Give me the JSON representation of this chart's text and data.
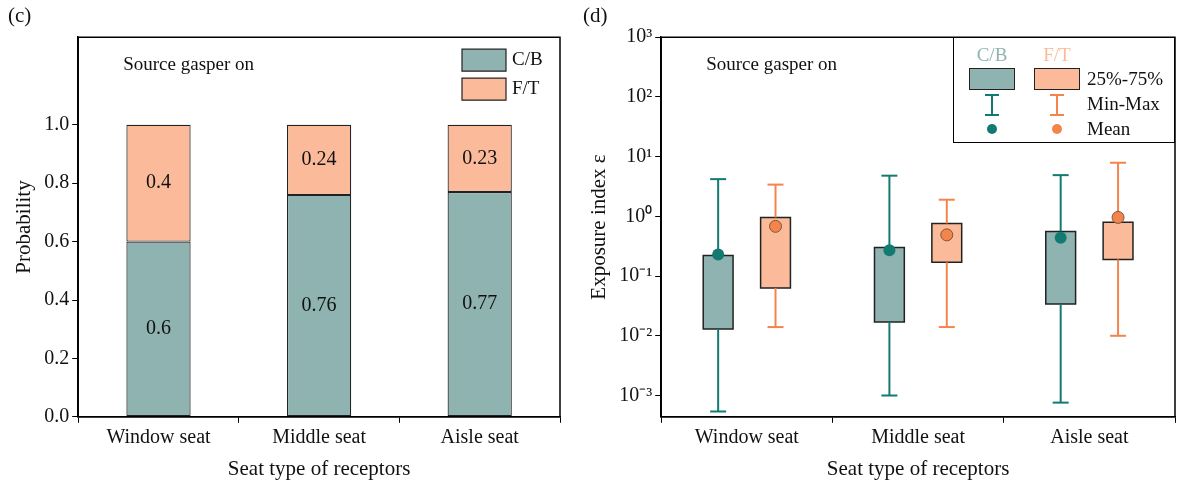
{
  "chart_data": [
    {
      "type": "bar",
      "title": "(c)",
      "stacked": true,
      "categories": [
        "Window seat",
        "Middle seat",
        "Aisle seat"
      ],
      "series": [
        {
          "name": "C/B",
          "color": "#8fb3b1",
          "values": [
            0.6,
            0.76,
            0.77
          ]
        },
        {
          "name": "F/T",
          "color": "#fbbb9a",
          "values": [
            0.4,
            0.24,
            0.23
          ]
        }
      ],
      "xlabel": "Seat type of receptors",
      "ylabel": "Probability",
      "ylim": [
        0,
        1.3
      ],
      "yticks": [
        {
          "value": 0,
          "label": "0.0"
        },
        0.2,
        0.4,
        0.6,
        0.8,
        {
          "value": 1,
          "label": "1.0"
        }
      ],
      "data_labels": true,
      "legend": "top right",
      "annotations": [
        "Source gasper on"
      ]
    },
    {
      "type": "box",
      "title": "(d)",
      "categories": [
        "Window seat",
        "Middle seat",
        "Aisle seat"
      ],
      "series": [
        {
          "name": "C/B",
          "color": "#8fb3b1",
          "boxes": [
            {
              "low": 0.00054,
              "q1": 0.013,
              "q3": 0.22,
              "high": 4.2,
              "mean": 0.23
            },
            {
              "low": 0.001,
              "q1": 0.017,
              "q3": 0.3,
              "high": 4.8,
              "mean": 0.27
            },
            {
              "low": 0.00076,
              "q1": 0.034,
              "q3": 0.56,
              "high": 4.9,
              "mean": 0.44
            }
          ]
        },
        {
          "name": "F/T",
          "color": "#fbbb9a",
          "boxes": [
            {
              "low": 0.014,
              "q1": 0.063,
              "q3": 0.96,
              "high": 3.4,
              "mean": 0.68
            },
            {
              "low": 0.014,
              "q1": 0.17,
              "q3": 0.76,
              "high": 1.9,
              "mean": 0.49
            },
            {
              "low": 0.01,
              "q1": 0.19,
              "q3": 0.8,
              "high": 7.9,
              "mean": 0.96
            }
          ]
        }
      ],
      "xlabel": "Seat type of receptors",
      "ylabel": "Exposure index ε",
      "log": true,
      "ylim": [
        0.00044,
        1000
      ],
      "yticks": [
        {
          "value": 0.001,
          "label": "10⁻³"
        },
        {
          "value": 0.01,
          "label": "10⁻²"
        },
        {
          "value": 0.1,
          "label": "10⁻¹"
        },
        {
          "value": 1,
          "label": "10⁰"
        },
        {
          "value": 10,
          "label": "10¹"
        },
        {
          "value": 100,
          "label": "10²"
        },
        {
          "value": 1000,
          "label": "10³"
        }
      ],
      "legend": "top right",
      "annotations": [
        "Source gasper on",
        "25%-75%",
        "Min-Max",
        "Mean"
      ]
    }
  ]
}
